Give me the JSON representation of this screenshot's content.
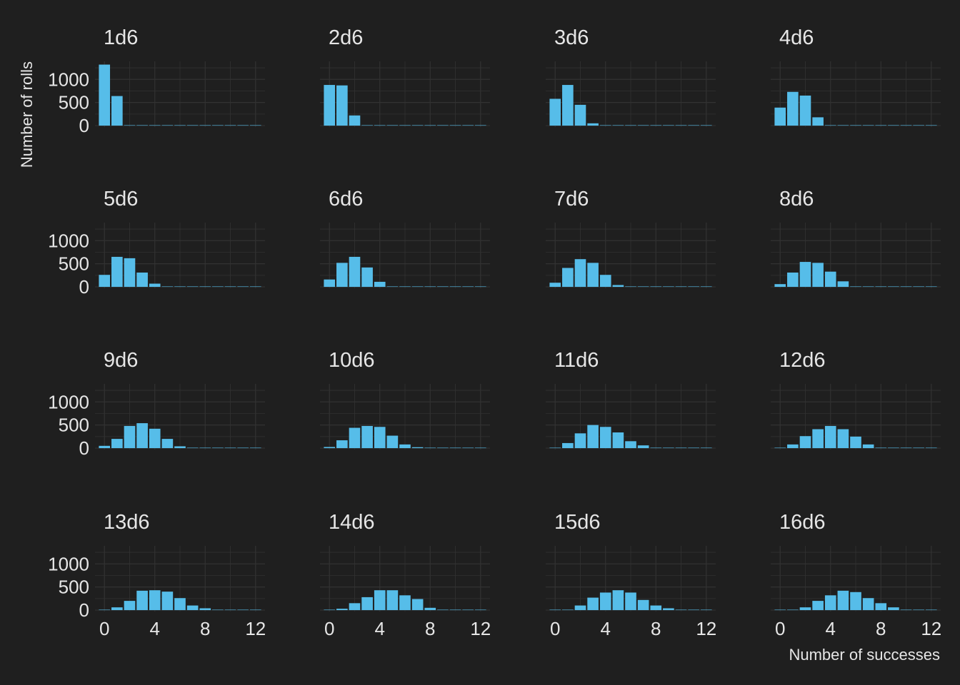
{
  "chart_data": {
    "type": "bar",
    "subtype": "faceted-histogram",
    "xlabel": "Number of successes",
    "ylabel": "Number of rolls",
    "xlim": [
      -0.75,
      12.75
    ],
    "ylim": [
      -30,
      1390
    ],
    "xticks": [
      0,
      4,
      8,
      12
    ],
    "yticks": [
      0,
      500,
      1000
    ],
    "grid": true,
    "bar_color": "#56bde9",
    "background_color": "#1f1f1f",
    "grid_color": "#323232",
    "text_color": "#e6e6e6",
    "panels": [
      {
        "title": "1d6",
        "values": [
          1320,
          640,
          0,
          0,
          0,
          0,
          0,
          0,
          0,
          0,
          0,
          0,
          0
        ]
      },
      {
        "title": "2d6",
        "values": [
          880,
          870,
          220,
          0,
          0,
          0,
          0,
          0,
          0,
          0,
          0,
          0,
          0
        ]
      },
      {
        "title": "3d6",
        "values": [
          580,
          880,
          450,
          50,
          0,
          0,
          0,
          0,
          0,
          0,
          0,
          0,
          0
        ]
      },
      {
        "title": "4d6",
        "values": [
          390,
          730,
          650,
          180,
          0,
          0,
          0,
          0,
          0,
          0,
          0,
          0,
          0
        ]
      },
      {
        "title": "5d6",
        "values": [
          260,
          650,
          620,
          310,
          70,
          0,
          0,
          0,
          0,
          0,
          0,
          0,
          0
        ]
      },
      {
        "title": "6d6",
        "values": [
          160,
          520,
          650,
          420,
          110,
          0,
          0,
          0,
          0,
          0,
          0,
          0,
          0
        ]
      },
      {
        "title": "7d6",
        "values": [
          90,
          410,
          600,
          520,
          260,
          40,
          0,
          0,
          0,
          0,
          0,
          0,
          0
        ]
      },
      {
        "title": "8d6",
        "values": [
          60,
          310,
          540,
          520,
          330,
          120,
          0,
          0,
          0,
          0,
          0,
          0,
          0
        ]
      },
      {
        "title": "9d6",
        "values": [
          50,
          200,
          480,
          540,
          420,
          200,
          40,
          0,
          0,
          0,
          0,
          0,
          0
        ]
      },
      {
        "title": "10d6",
        "values": [
          25,
          170,
          440,
          480,
          460,
          270,
          80,
          20,
          0,
          0,
          0,
          0,
          0
        ]
      },
      {
        "title": "11d6",
        "values": [
          0,
          110,
          320,
          500,
          460,
          340,
          150,
          60,
          0,
          0,
          0,
          0,
          0
        ]
      },
      {
        "title": "12d6",
        "values": [
          0,
          80,
          260,
          410,
          480,
          410,
          250,
          80,
          0,
          0,
          0,
          0,
          0
        ]
      },
      {
        "title": "13d6",
        "values": [
          0,
          60,
          200,
          420,
          430,
          400,
          260,
          100,
          40,
          0,
          0,
          0,
          0
        ]
      },
      {
        "title": "14d6",
        "values": [
          0,
          30,
          150,
          280,
          430,
          430,
          320,
          240,
          50,
          0,
          0,
          0,
          0
        ]
      },
      {
        "title": "15d6",
        "values": [
          0,
          0,
          100,
          270,
          380,
          430,
          380,
          220,
          100,
          40,
          0,
          0,
          0
        ]
      },
      {
        "title": "16d6",
        "values": [
          0,
          0,
          60,
          200,
          320,
          420,
          390,
          260,
          150,
          60,
          0,
          0,
          0
        ]
      }
    ]
  }
}
